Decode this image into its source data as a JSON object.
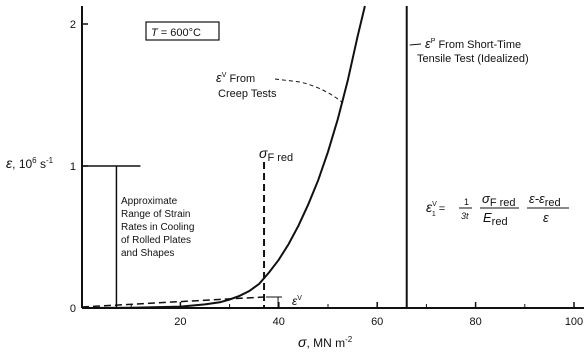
{
  "chart_data": {
    "type": "line",
    "xlabel": {
      "sym": "σ",
      "unit": ", MN m",
      "exp": "-2"
    },
    "ylabel": {
      "sym": "ε",
      "unit": ", 10",
      "exp": "6",
      "tail": " s",
      "exp2": "-1"
    },
    "xlim": [
      0,
      100
    ],
    "ylim": [
      0,
      2.1
    ],
    "x_ticks": [
      20,
      40,
      60,
      80,
      100
    ],
    "y_ticks": [
      0,
      1,
      2
    ],
    "x_minor_ticks": [
      10,
      30,
      50,
      70,
      90
    ],
    "grid": false,
    "series": [
      {
        "x": [
          0,
          10,
          20,
          25,
          28,
          30,
          32,
          34,
          36,
          38,
          40,
          42,
          44,
          46,
          48,
          50,
          52,
          54,
          56,
          57.5
        ],
        "y": [
          0,
          0.002,
          0.01,
          0.025,
          0.04,
          0.06,
          0.085,
          0.12,
          0.17,
          0.25,
          0.34,
          0.45,
          0.58,
          0.73,
          0.9,
          1.1,
          1.33,
          1.6,
          1.91,
          2.2
        ]
      }
    ],
    "tensile_line_x": 66,
    "sigma_red_x": 37,
    "strain_rate_range": {
      "x": 7,
      "y": [
        0,
        1.0
      ]
    },
    "annotations": {
      "temperature": {
        "sym": "T",
        "text": " = 600°C"
      },
      "creep": {
        "sym": "ε",
        "sup": "V",
        "text1": " From",
        "text2": "Creep Tests"
      },
      "tensile": {
        "sym": "ε",
        "sup": "P",
        "text1": " From Short-Time",
        "text2": "Tensile Test (Idealized)"
      },
      "sigma_red": {
        "sym": "σ",
        "sub": "F red"
      },
      "eps_v_small": {
        "sym": "ε",
        "sup": "V"
      },
      "cooling": [
        "Approximate",
        "Range of Strain",
        "Rates in Cooling",
        "of Rolled Plates",
        "and Shapes"
      ],
      "formula": {
        "lhs_sym": "ε",
        "lhs_sup": "V",
        "lhs_sub": "1",
        "eq": " = ",
        "frac1_num": "1",
        "frac1_den": "3t",
        "frac2_num": "σ",
        "frac2_num_sub": "F red",
        "frac2_den": "E",
        "frac2_den_sub": "red",
        "frac3_num": "ε-ε",
        "frac3_num_sub": "red",
        "frac3_den": "ε"
      }
    }
  }
}
